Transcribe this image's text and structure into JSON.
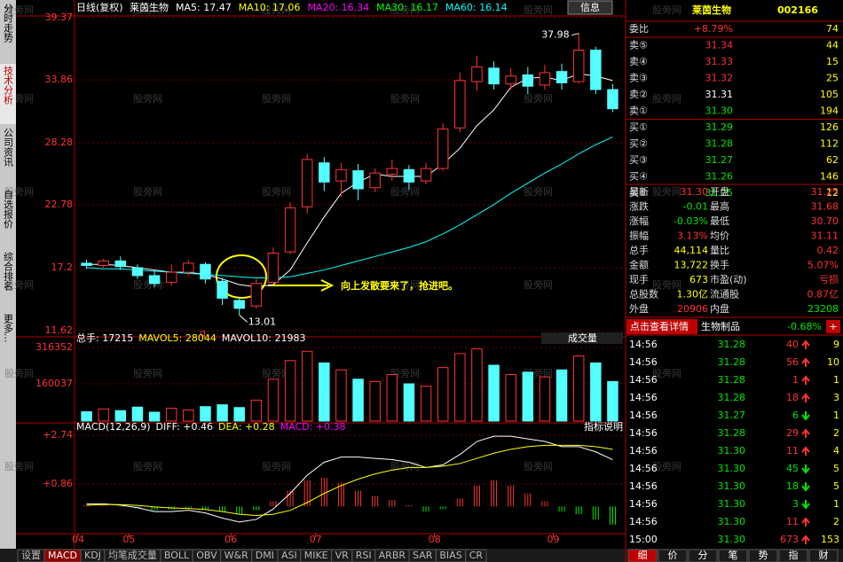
{
  "watermark": "股旁网",
  "left_tabs": [
    "分时走势",
    "技术分析",
    "公司资讯",
    "自选报价",
    "综合排名",
    "更多..."
  ],
  "price_chart": {
    "type": "candlestick",
    "period": "日线(复权)",
    "stock": "莱茵生物",
    "ma_legend": [
      {
        "label": "MA5: 17.47",
        "color": "#ffffff"
      },
      {
        "label": "MA10: 17.06",
        "color": "#ffff00"
      },
      {
        "label": "MA20: 16.34",
        "color": "#ff00ff"
      },
      {
        "label": "MA30: 16.17",
        "color": "#00ff00"
      },
      {
        "label": "MA60: 16.14",
        "color": "#00ffff"
      }
    ],
    "info_button": "信息",
    "categories": [
      "04",
      null,
      null,
      "05",
      null,
      null,
      null,
      null,
      null,
      "06",
      null,
      null,
      null,
      null,
      "07",
      null,
      null,
      null,
      null,
      null,
      null,
      "08",
      null,
      null,
      null,
      null,
      null,
      null,
      "09",
      null,
      null,
      null
    ],
    "open": [
      17.6,
      17.4,
      17.8,
      17.2,
      16.5,
      15.9,
      16.8,
      17.5,
      16.0,
      14.3,
      13.8,
      15.9,
      18.6,
      22.6,
      26.5,
      24.9,
      25.8,
      24.3,
      25.5,
      25.9,
      24.9,
      26.0,
      29.6,
      33.7,
      34.9,
      33.5,
      34.3,
      33.4,
      34.6,
      33.7,
      36.5,
      33.0
    ],
    "close": [
      17.4,
      17.8,
      17.3,
      16.5,
      15.8,
      16.8,
      17.6,
      16.2,
      14.5,
      13.6,
      15.8,
      18.5,
      22.5,
      26.8,
      24.8,
      25.9,
      24.2,
      25.6,
      26.0,
      24.8,
      26.0,
      29.5,
      33.8,
      35.0,
      33.5,
      34.2,
      33.3,
      34.5,
      33.6,
      36.5,
      33.0,
      31.3
    ],
    "high": [
      17.9,
      18.0,
      18.2,
      17.5,
      17.0,
      17.5,
      17.9,
      17.7,
      16.3,
      14.6,
      16.2,
      19.0,
      23.0,
      27.3,
      27.0,
      26.5,
      26.4,
      26.0,
      26.8,
      26.3,
      26.5,
      30.0,
      34.5,
      36.0,
      35.5,
      34.9,
      35.0,
      35.2,
      35.3,
      37.98,
      36.8,
      33.5
    ],
    "low": [
      17.1,
      17.2,
      17.0,
      16.2,
      15.5,
      15.6,
      16.5,
      15.8,
      13.9,
      13.01,
      13.6,
      15.8,
      18.4,
      22.0,
      24.0,
      23.5,
      23.2,
      23.9,
      24.9,
      24.1,
      24.6,
      25.8,
      29.2,
      32.9,
      33.0,
      33.0,
      32.6,
      33.0,
      33.0,
      33.5,
      32.6,
      31.0
    ],
    "series": [
      {
        "color": "#ffffff",
        "values": [
          17.5,
          17.5,
          17.4,
          17.2,
          17.0,
          16.8,
          16.8,
          16.6,
          16.2,
          15.7,
          15.5,
          15.7,
          17.0,
          19.4,
          21.7,
          23.8,
          24.8,
          25.5,
          25.3,
          25.3,
          25.3,
          26.4,
          27.8,
          29.8,
          31.2,
          33.2,
          34.0,
          34.1,
          33.8,
          34.4,
          34.2,
          33.8
        ]
      },
      {
        "color": "#00ffff",
        "values": [
          17.2,
          17.1,
          17.1,
          17.0,
          16.9,
          16.8,
          16.7,
          16.6,
          16.5,
          16.4,
          16.3,
          16.3,
          16.4,
          16.7,
          17.0,
          17.4,
          17.8,
          18.2,
          18.6,
          19.0,
          19.5,
          20.2,
          21.0,
          21.9,
          22.8,
          23.8,
          24.7,
          25.6,
          26.4,
          27.3,
          28.1,
          28.8
        ]
      }
    ],
    "ylim": [
      11.62,
      39.37
    ],
    "yticks": [
      39.37,
      33.86,
      28.28,
      22.78,
      17.2,
      11.62
    ],
    "high_label": "37.98",
    "low_label": "13.01",
    "marker_q": "q",
    "annotation": "向上发散要来了，抢进吧。"
  },
  "volume_chart": {
    "type": "bar",
    "legend": [
      {
        "label": "总手: 17215",
        "color": "#ffffff"
      },
      {
        "label": "MAVOL5: 28044",
        "color": "#ffff00"
      },
      {
        "label": "MAVOL10: 21983",
        "color": "#ffffff"
      }
    ],
    "name": "成交量",
    "values": [
      40000,
      52000,
      45000,
      60000,
      38000,
      55000,
      48000,
      62000,
      70000,
      58000,
      90000,
      180000,
      260000,
      300000,
      250000,
      220000,
      180000,
      170000,
      200000,
      160000,
      150000,
      230000,
      290000,
      310000,
      240000,
      200000,
      210000,
      190000,
      220000,
      280000,
      250000,
      170000
    ],
    "ylim": [
      0,
      316352
    ],
    "yticks": [
      316352,
      160037
    ]
  },
  "macd_chart": {
    "type": "macd",
    "legend": [
      {
        "label": "MACD(12,26,9)",
        "color": "#ffffff"
      },
      {
        "label": "DIFF: +0.46",
        "color": "#ffffff"
      },
      {
        "label": "DEA: +0.28",
        "color": "#ffff00"
      },
      {
        "label": "MACD: +0.38",
        "color": "#ff00ff"
      }
    ],
    "help": "指标说明",
    "hist": [
      0.05,
      0.03,
      -0.02,
      -0.08,
      -0.15,
      -0.12,
      -0.05,
      -0.1,
      -0.2,
      -0.3,
      -0.15,
      0.2,
      0.6,
      1.0,
      1.1,
      0.9,
      0.6,
      0.4,
      0.25,
      0.05,
      -0.2,
      -0.1,
      0.3,
      0.8,
      1.0,
      0.8,
      0.5,
      0.2,
      -0.2,
      -0.3,
      -0.5,
      -0.7
    ],
    "series": [
      {
        "color": "#ffffff",
        "values": [
          0.1,
          0.1,
          0.05,
          -0.05,
          -0.2,
          -0.2,
          -0.15,
          -0.25,
          -0.45,
          -0.6,
          -0.5,
          -0.1,
          0.5,
          1.2,
          1.7,
          1.9,
          1.9,
          1.85,
          1.8,
          1.7,
          1.5,
          1.6,
          2.0,
          2.5,
          2.7,
          2.7,
          2.6,
          2.5,
          2.3,
          2.3,
          2.1,
          1.8
        ]
      },
      {
        "color": "#ffff00",
        "values": [
          0.05,
          0.07,
          0.07,
          0.04,
          -0.02,
          -0.06,
          -0.08,
          -0.12,
          -0.2,
          -0.3,
          -0.35,
          -0.3,
          -0.15,
          0.15,
          0.5,
          0.8,
          1.05,
          1.25,
          1.4,
          1.5,
          1.5,
          1.55,
          1.65,
          1.85,
          2.05,
          2.2,
          2.3,
          2.35,
          2.35,
          2.35,
          2.3,
          2.2
        ]
      }
    ],
    "ylim": [
      -0.98,
      2.74
    ],
    "yticks": [
      {
        "value": 2.74,
        "label": "+2.74"
      },
      {
        "value": 0.86,
        "label": "+0.86"
      }
    ]
  },
  "bottom_tabs": [
    "设置",
    "MACD",
    "KDJ",
    "均笔成交量",
    "BOLL",
    "OBV",
    "W&R",
    "DMI",
    "ASI",
    "MIKE",
    "VR",
    "RSI",
    "ARBR",
    "SAR",
    "BIAS",
    "CR"
  ],
  "quote": {
    "name": "莱茵生物",
    "code": "002166",
    "order_rows": [
      {
        "label": "委比",
        "price": "+8.79%",
        "vol": "74",
        "color": "#ff3232"
      },
      {
        "label": "卖⑤",
        "price": "31.34",
        "vol": "44",
        "color": "#ff3232"
      },
      {
        "label": "卖④",
        "price": "31.33",
        "vol": "15",
        "color": "#ff3232"
      },
      {
        "label": "卖③",
        "price": "31.32",
        "vol": "25",
        "color": "#ff3232"
      },
      {
        "label": "卖②",
        "price": "31.31",
        "vol": "105",
        "color": "#ffffff"
      },
      {
        "label": "卖①",
        "price": "31.30",
        "vol": "194",
        "color": "#00e600"
      },
      {
        "label": "买①",
        "price": "31.29",
        "vol": "126",
        "color": "#00e600"
      },
      {
        "label": "买②",
        "price": "31.28",
        "vol": "112",
        "color": "#00e600"
      },
      {
        "label": "买③",
        "price": "31.27",
        "vol": "62",
        "color": "#00e600"
      },
      {
        "label": "买④",
        "price": "31.26",
        "vol": "146",
        "color": "#00e600"
      },
      {
        "label": "买⑤",
        "price": "31.25",
        "vol": "12",
        "color": "#00e600"
      }
    ],
    "stats": [
      [
        "最新",
        "31.30",
        "开盘",
        "31.25"
      ],
      [
        "涨跌",
        "-0.01",
        "最高",
        "31.68"
      ],
      [
        "涨幅",
        "-0.03%",
        "最低",
        "30.70"
      ],
      [
        "振幅",
        "3.13%",
        "均价",
        "31.11"
      ],
      [
        "总手",
        "44,114",
        "量比",
        "0.42"
      ],
      [
        "金额",
        "13,722",
        "换手",
        "5.07%"
      ],
      [
        "现手",
        "673",
        "市盈(动)",
        "亏损"
      ],
      [
        "总股数",
        "1.30亿",
        "流通股",
        "0.87亿"
      ],
      [
        "外盘",
        "20906",
        "内盘",
        "23208"
      ]
    ],
    "detail_button": "点击查看详情",
    "sector": "生物制品",
    "sector_change": "-0.68%",
    "plus": "+",
    "ticks": [
      {
        "time": "14:56",
        "price": "31.28",
        "vol": "40",
        "dir": "up",
        "n": "9"
      },
      {
        "time": "14:56",
        "price": "31.28",
        "vol": "56",
        "dir": "up",
        "n": "10"
      },
      {
        "time": "14:56",
        "price": "31.28",
        "vol": "1",
        "dir": "up",
        "n": "1"
      },
      {
        "time": "14:56",
        "price": "31.28",
        "vol": "18",
        "dir": "up",
        "n": "3"
      },
      {
        "time": "14:56",
        "price": "31.27",
        "vol": "6",
        "dir": "down",
        "n": "1"
      },
      {
        "time": "14:56",
        "price": "31.28",
        "vol": "29",
        "dir": "up",
        "n": "2"
      },
      {
        "time": "14:56",
        "price": "31.30",
        "vol": "11",
        "dir": "up",
        "n": "4"
      },
      {
        "time": "14:56",
        "price": "31.30",
        "vol": "45",
        "dir": "down",
        "n": "5"
      },
      {
        "time": "14:56",
        "price": "31.30",
        "vol": "18",
        "dir": "down",
        "n": "5"
      },
      {
        "time": "14:56",
        "price": "31.30",
        "vol": "3",
        "dir": "down",
        "n": "1"
      },
      {
        "time": "14:56",
        "price": "31.30",
        "vol": "11",
        "dir": "up",
        "n": "2"
      },
      {
        "time": "15:00",
        "price": "31.30",
        "vol": "673",
        "dir": "up",
        "n": "153"
      }
    ],
    "right_tabs": [
      "细",
      "价",
      "分",
      "笔",
      "势",
      "指",
      "财"
    ]
  }
}
